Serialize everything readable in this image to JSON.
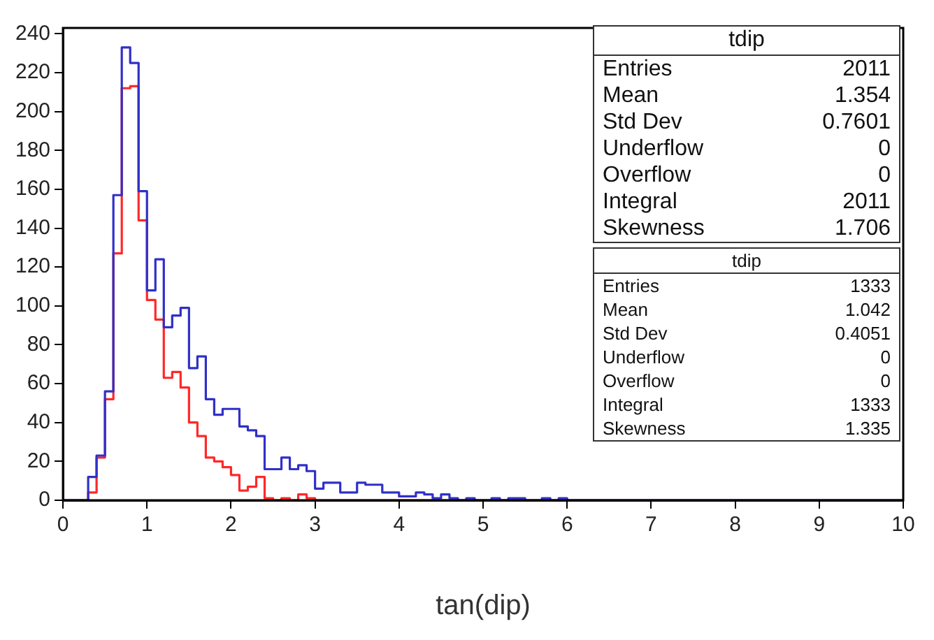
{
  "chart_data": {
    "type": "histogram",
    "xlabel": "tan(dip)",
    "bins": [
      0,
      0.1,
      0.2,
      0.3,
      0.4,
      0.5,
      0.6,
      0.7,
      0.8,
      0.9,
      1,
      1.1,
      1.2,
      1.3,
      1.4,
      1.5,
      1.6,
      1.7,
      1.8,
      1.9,
      2,
      2.1,
      2.2,
      2.3,
      2.4,
      2.5,
      2.6,
      2.7,
      2.8,
      2.9,
      3,
      3.1,
      3.2,
      3.3,
      3.4,
      3.5,
      3.6,
      3.7,
      3.8,
      3.9,
      4,
      4.1,
      4.2,
      4.3,
      4.4,
      4.5,
      4.6,
      4.7,
      4.8,
      4.9,
      5,
      5.1,
      5.2,
      5.3,
      5.4,
      5.5,
      5.6,
      5.7,
      5.8,
      5.9,
      6,
      6.1,
      6.2,
      6.3,
      6.4,
      6.5,
      6.6,
      6.7,
      6.8,
      6.9,
      7,
      7.1,
      7.2,
      7.3,
      7.4,
      7.5,
      7.6,
      7.7,
      7.8,
      7.9,
      8,
      8.1,
      8.2,
      8.3,
      8.4,
      8.5,
      8.6,
      8.7,
      8.8,
      8.9,
      9,
      9.1,
      9.2,
      9.3,
      9.4,
      9.5,
      9.6,
      9.7,
      9.8,
      9.9,
      10
    ],
    "series": [
      {
        "color": "#3030c8",
        "values": [
          0,
          0,
          0,
          12,
          23,
          56,
          157,
          233,
          225,
          159,
          108,
          124,
          89,
          95,
          99,
          68,
          74,
          52,
          44,
          47,
          47,
          38,
          36,
          33,
          16,
          16,
          22,
          16,
          18,
          15,
          6,
          9,
          9,
          4,
          4,
          9,
          8,
          8,
          4,
          4,
          2,
          2,
          4,
          3,
          1,
          3,
          1,
          0,
          1,
          0,
          0,
          1,
          0,
          1,
          1,
          0,
          0,
          1,
          0,
          1,
          0,
          0,
          0,
          0,
          0,
          0,
          0,
          0,
          0,
          0,
          0,
          0,
          0,
          0,
          0,
          0,
          0,
          0,
          0,
          0,
          0,
          0,
          0,
          0,
          0,
          0,
          0,
          0,
          0,
          0,
          0,
          0,
          0,
          0,
          0,
          0,
          0,
          0,
          0,
          0
        ]
      },
      {
        "color": "#ff2828",
        "values": [
          0,
          0,
          0,
          4,
          22,
          52,
          127,
          212,
          213,
          144,
          103,
          93,
          63,
          66,
          58,
          40,
          33,
          22,
          20,
          17,
          13,
          5,
          7,
          12,
          1,
          0,
          1,
          0,
          3,
          1,
          0,
          0,
          0,
          0,
          0,
          0,
          0,
          0,
          0,
          0,
          0,
          0,
          0,
          0,
          0,
          0,
          0,
          0,
          0,
          0,
          0,
          0,
          0,
          0,
          0,
          0,
          0,
          0,
          0,
          0,
          0,
          0,
          0,
          0,
          0,
          0,
          0,
          0,
          0,
          0,
          0,
          0,
          0,
          0,
          0,
          0,
          0,
          0,
          0,
          0,
          0,
          0,
          0,
          0,
          0,
          0,
          0,
          0,
          0,
          0,
          0,
          0,
          0,
          0,
          0,
          0,
          0,
          0,
          0,
          0
        ]
      }
    ],
    "xlim": [
      0,
      10
    ],
    "xticks": [
      0,
      1,
      2,
      3,
      4,
      5,
      6,
      7,
      8,
      9,
      10
    ],
    "ylim": [
      0,
      243
    ],
    "yticks": [
      0,
      20,
      40,
      60,
      80,
      100,
      120,
      140,
      160,
      180,
      200,
      220,
      240
    ],
    "grid": false,
    "legend": false,
    "annotations": [
      "tdip",
      "Entries 2011",
      "Mean 1.354",
      "Std Dev 0.7601",
      "Underflow 0",
      "Overflow 0",
      "Integral 2011",
      "Skewness 1.706",
      "tdip",
      "Entries 1333",
      "Mean 1.042",
      "Std Dev 0.4051",
      "Underflow 0",
      "Overflow 0",
      "Integral 1333",
      "Skewness 1.335"
    ]
  }
}
